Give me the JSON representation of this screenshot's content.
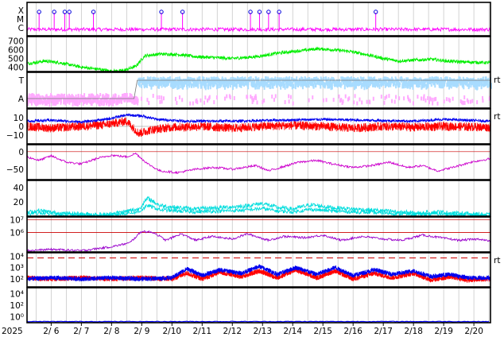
{
  "chart_data": {
    "type": "line",
    "x": {
      "ticks": [
        "2025",
        "2/ 6",
        "2/ 7",
        "2/ 8",
        "2/ 9",
        "2/10",
        "2/11",
        "2/12",
        "2/13",
        "2/14",
        "2/15",
        "2/16",
        "2/17",
        "2/18",
        "2/19",
        "2/20"
      ],
      "start_day": 5.2,
      "end_day": 20.55
    },
    "panels": [
      {
        "id": "xray-flare",
        "ylabels": [
          "X",
          "M",
          "C"
        ],
        "color": "#ff00ff",
        "baseline": 0.12,
        "flare_markers_days": [
          5.6,
          6.1,
          6.45,
          6.6,
          7.4,
          9.65,
          10.35,
          12.6,
          12.9,
          13.2,
          13.55,
          16.75
        ]
      },
      {
        "id": "solar-wind-speed",
        "ylabels": [
          "700",
          "600",
          "500",
          "400"
        ],
        "ylim": [
          350,
          750
        ],
        "color": "#00ee00",
        "series": [
          [
            5.2,
            440
          ],
          [
            5.8,
            470
          ],
          [
            6.3,
            450
          ],
          [
            7.0,
            400
          ],
          [
            7.6,
            375
          ],
          [
            8.0,
            355
          ],
          [
            8.4,
            360
          ],
          [
            8.8,
            410
          ],
          [
            9.1,
            530
          ],
          [
            9.6,
            550
          ],
          [
            10.2,
            545
          ],
          [
            10.8,
            520
          ],
          [
            11.4,
            510
          ],
          [
            12.0,
            500
          ],
          [
            12.8,
            520
          ],
          [
            13.5,
            560
          ],
          [
            14.3,
            590
          ],
          [
            14.8,
            610
          ],
          [
            15.3,
            600
          ],
          [
            15.9,
            580
          ],
          [
            16.5,
            540
          ],
          [
            17.0,
            500
          ],
          [
            17.5,
            470
          ],
          [
            18.0,
            480
          ],
          [
            18.6,
            490
          ],
          [
            19.1,
            470
          ],
          [
            19.6,
            460
          ],
          [
            20.1,
            455
          ],
          [
            20.55,
            450
          ]
        ]
      },
      {
        "id": "imf-sector",
        "ylabels": [
          "T",
          "A"
        ],
        "right_label": "rt",
        "color_t": "#a8dcff",
        "color_a": "#ffaaff",
        "switch_day": 8.85
      },
      {
        "id": "imf-components",
        "ylabels": [
          "10",
          "0",
          "−10"
        ],
        "ylim": [
          -20,
          20
        ],
        "right_label": "rt",
        "total_color": "#0000ee",
        "bz_color": "#ff0000",
        "total_series": [
          [
            5.2,
            6
          ],
          [
            6.0,
            7
          ],
          [
            7.0,
            5
          ],
          [
            7.8,
            8
          ],
          [
            8.5,
            13
          ],
          [
            9.0,
            12
          ],
          [
            9.5,
            8
          ],
          [
            10.5,
            6
          ],
          [
            12.0,
            6
          ],
          [
            13.5,
            7
          ],
          [
            15.0,
            8
          ],
          [
            16.5,
            7
          ],
          [
            18.0,
            6
          ],
          [
            19.0,
            8
          ],
          [
            20.55,
            6
          ]
        ],
        "bz_series": [
          [
            5.2,
            0
          ],
          [
            6.0,
            -2
          ],
          [
            7.0,
            0
          ],
          [
            7.8,
            2
          ],
          [
            8.5,
            6
          ],
          [
            8.9,
            -8
          ],
          [
            9.3,
            -4
          ],
          [
            10.0,
            -1
          ],
          [
            11.0,
            0
          ],
          [
            12.0,
            -2
          ],
          [
            13.0,
            0
          ],
          [
            14.0,
            1
          ],
          [
            15.0,
            0
          ],
          [
            16.0,
            -2
          ],
          [
            17.0,
            0
          ],
          [
            18.0,
            -1
          ],
          [
            19.0,
            0
          ],
          [
            20.55,
            -1
          ]
        ]
      },
      {
        "id": "dst-index",
        "ylabels": [
          "0",
          "−50"
        ],
        "ylim": [
          -80,
          20
        ],
        "color": "#cc00cc",
        "series": [
          [
            5.2,
            -15
          ],
          [
            5.6,
            -25
          ],
          [
            6.0,
            -12
          ],
          [
            6.5,
            -30
          ],
          [
            7.0,
            -35
          ],
          [
            7.5,
            -20
          ],
          [
            8.0,
            -10
          ],
          [
            8.5,
            -15
          ],
          [
            8.8,
            -5
          ],
          [
            9.2,
            -35
          ],
          [
            9.6,
            -55
          ],
          [
            10.2,
            -60
          ],
          [
            10.8,
            -50
          ],
          [
            11.4,
            -45
          ],
          [
            12.0,
            -50
          ],
          [
            12.8,
            -40
          ],
          [
            13.2,
            -55
          ],
          [
            13.6,
            -45
          ],
          [
            14.2,
            -30
          ],
          [
            14.8,
            -25
          ],
          [
            15.3,
            -35
          ],
          [
            16.0,
            -45
          ],
          [
            16.6,
            -40
          ],
          [
            17.2,
            -30
          ],
          [
            17.8,
            -45
          ],
          [
            18.3,
            -40
          ],
          [
            18.8,
            -55
          ],
          [
            19.3,
            -45
          ],
          [
            19.9,
            -30
          ],
          [
            20.55,
            -20
          ]
        ]
      },
      {
        "id": "proton-flux",
        "ylabels": [
          "40",
          "20"
        ],
        "ylim": [
          0,
          50
        ],
        "color": "#00dddd",
        "series": [
          [
            5.2,
            5
          ],
          [
            5.6,
            8
          ],
          [
            6.2,
            4
          ],
          [
            7.0,
            3
          ],
          [
            7.8,
            2
          ],
          [
            8.4,
            6
          ],
          [
            8.9,
            10
          ],
          [
            9.2,
            25
          ],
          [
            9.6,
            15
          ],
          [
            10.2,
            12
          ],
          [
            10.8,
            10
          ],
          [
            11.6,
            12
          ],
          [
            12.4,
            14
          ],
          [
            13.0,
            18
          ],
          [
            13.5,
            12
          ],
          [
            14.0,
            10
          ],
          [
            14.6,
            16
          ],
          [
            15.3,
            12
          ],
          [
            16.0,
            10
          ],
          [
            16.8,
            8
          ],
          [
            17.5,
            6
          ],
          [
            18.2,
            4
          ],
          [
            18.8,
            6
          ],
          [
            19.4,
            4
          ],
          [
            20.0,
            3
          ],
          [
            20.55,
            2
          ]
        ]
      },
      {
        "id": "electron-flux",
        "ylabels": [
          "10⁷",
          "10⁶"
        ],
        "log_range": [
          4.5,
          7.2
        ],
        "color": "#9900cc",
        "ref_color": "#cc0000",
        "series": [
          [
            5.2,
            4.6
          ],
          [
            6.0,
            4.7
          ],
          [
            7.0,
            4.6
          ],
          [
            8.0,
            4.9
          ],
          [
            8.6,
            5.2
          ],
          [
            9.0,
            6.1
          ],
          [
            9.4,
            6.0
          ],
          [
            9.8,
            5.4
          ],
          [
            10.3,
            5.9
          ],
          [
            10.8,
            5.4
          ],
          [
            11.3,
            5.7
          ],
          [
            12.0,
            5.5
          ],
          [
            12.5,
            5.9
          ],
          [
            13.2,
            5.4
          ],
          [
            13.7,
            5.7
          ],
          [
            14.4,
            5.6
          ],
          [
            15.0,
            5.8
          ],
          [
            15.6,
            5.4
          ],
          [
            16.3,
            5.7
          ],
          [
            17.0,
            5.5
          ],
          [
            17.6,
            5.4
          ],
          [
            18.3,
            5.8
          ],
          [
            18.9,
            5.6
          ],
          [
            19.5,
            5.4
          ],
          [
            20.2,
            5.5
          ],
          [
            20.55,
            5.3
          ]
        ]
      },
      {
        "id": "particle-rates",
        "ylabels": [
          "10⁴",
          "10³",
          "10²"
        ],
        "log_range": [
          1.3,
          4.3
        ],
        "right_label": "rt",
        "color_a": "#0000ee",
        "color_b": "#ff0000",
        "ref_color": "#cc0000",
        "series_a": [
          [
            5.2,
            2.0
          ],
          [
            6.0,
            2.1
          ],
          [
            7.0,
            2.0
          ],
          [
            8.0,
            2.1
          ],
          [
            9.0,
            2.0
          ],
          [
            10.0,
            2.1
          ],
          [
            10.5,
            2.9
          ],
          [
            11.0,
            2.3
          ],
          [
            11.6,
            2.8
          ],
          [
            12.3,
            2.5
          ],
          [
            12.9,
            3.1
          ],
          [
            13.5,
            2.4
          ],
          [
            14.1,
            3.0
          ],
          [
            14.8,
            2.4
          ],
          [
            15.4,
            3.0
          ],
          [
            16.0,
            2.3
          ],
          [
            16.7,
            2.8
          ],
          [
            17.3,
            2.4
          ],
          [
            18.0,
            2.7
          ],
          [
            18.6,
            2.2
          ],
          [
            19.2,
            2.4
          ],
          [
            19.8,
            2.1
          ],
          [
            20.55,
            2.1
          ]
        ],
        "series_b": [
          [
            5.2,
            2.1
          ],
          [
            6.0,
            2.0
          ],
          [
            7.0,
            2.1
          ],
          [
            8.0,
            2.0
          ],
          [
            9.0,
            2.1
          ],
          [
            10.0,
            2.0
          ],
          [
            10.5,
            2.5
          ],
          [
            11.0,
            2.0
          ],
          [
            11.6,
            2.6
          ],
          [
            12.3,
            2.2
          ],
          [
            12.9,
            2.7
          ],
          [
            13.5,
            2.1
          ],
          [
            14.1,
            2.8
          ],
          [
            14.8,
            2.1
          ],
          [
            15.4,
            2.7
          ],
          [
            16.0,
            2.0
          ],
          [
            16.7,
            2.5
          ],
          [
            17.3,
            2.1
          ],
          [
            18.0,
            2.5
          ],
          [
            18.6,
            1.9
          ],
          [
            19.2,
            2.2
          ],
          [
            19.8,
            1.9
          ],
          [
            20.55,
            2.0
          ]
        ]
      },
      {
        "id": "low-flux",
        "ylabels": [
          "10⁴",
          "10²",
          "10⁰"
        ],
        "log_range": [
          -1,
          5
        ],
        "color": "#0000ee",
        "series": [
          [
            5.2,
            -0.8
          ],
          [
            20.55,
            -0.8
          ]
        ]
      }
    ]
  }
}
